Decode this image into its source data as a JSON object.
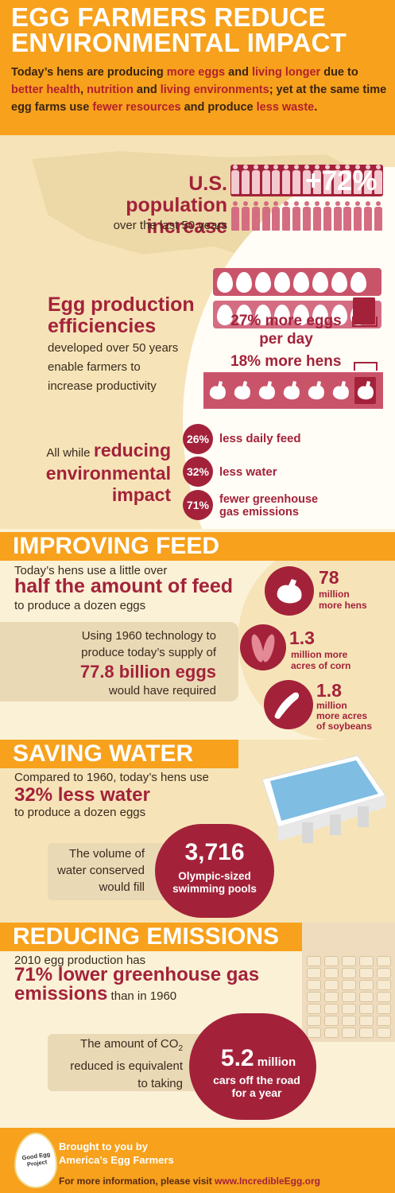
{
  "header": {
    "title": "EGG FARMERS REDUCE ENVIRONMENTAL IMPACT",
    "intro": [
      {
        "t": "Today’s hens are producing ",
        "hl": false
      },
      {
        "t": "more eggs",
        "hl": true
      },
      {
        "t": " and ",
        "hl": false
      },
      {
        "t": "living longer",
        "hl": true
      },
      {
        "t": " due to ",
        "hl": false
      },
      {
        "t": "better health",
        "hl": true
      },
      {
        "t": ", ",
        "hl": false
      },
      {
        "t": "nutrition",
        "hl": true
      },
      {
        "t": " and ",
        "hl": false
      },
      {
        "t": "living environments",
        "hl": true
      },
      {
        "t": "; yet at the same time egg farms use ",
        "hl": false
      },
      {
        "t": "fewer resources",
        "hl": true
      },
      {
        "t": " and produce ",
        "hl": false
      },
      {
        "t": "less waste",
        "hl": true
      },
      {
        "t": ".",
        "hl": false
      }
    ]
  },
  "population": {
    "heading_1": "U.S. population",
    "heading_2": "increase",
    "sub": "over the last 50 years",
    "value": "+72%"
  },
  "production": {
    "heading_1": "Egg production",
    "heading_2": "efficiencies",
    "body_1": "developed over 50 years",
    "body_2": "enable farmers to",
    "body_3": "increase productivity",
    "eggs_label_1": "27% more eggs",
    "eggs_label_2": "per day",
    "hens_label": "18% more hens"
  },
  "reducing": {
    "prefix": "All while",
    "heading_1": "reducing",
    "heading_2": "environmental",
    "heading_3": "impact",
    "items": [
      {
        "pct": "26%",
        "label": "less daily feed"
      },
      {
        "pct": "32%",
        "label": "less water"
      },
      {
        "pct": "71%",
        "label_1": "fewer greenhouse",
        "label_2": "gas emissions"
      }
    ]
  },
  "feed": {
    "band": "IMPROVING FEED",
    "line1": "Today’s hens use a little over",
    "big": "half the amount of feed",
    "line2": "to produce a dozen eggs",
    "box_1": "Using 1960 technology to",
    "box_2": "produce today’s supply of",
    "box_big": "77.8 billion eggs",
    "box_3": "would have required",
    "stats": [
      {
        "icon": "hen-icon",
        "num": "78",
        "l1": "million",
        "l2": "more hens"
      },
      {
        "icon": "corn-icon",
        "num": "1.3",
        "l1": "million more",
        "l2": "acres of corn"
      },
      {
        "icon": "soybean-icon",
        "num": "1.8",
        "l1": "million",
        "l2": "more acres",
        "l3": "of soybeans"
      }
    ]
  },
  "water": {
    "band": "SAVING WATER",
    "line1": "Compared to 1960, today’s hens use",
    "big": "32% less water",
    "line2": "to produce a dozen eggs",
    "box_1": "The volume of",
    "box_2": "water conserved",
    "box_3": "would fill",
    "circle_num": "3,716",
    "circle_l1": "Olympic-sized",
    "circle_l2": "swimming pools"
  },
  "emissions": {
    "band": "REDUCING EMISSIONS",
    "line1": "2010 egg production has",
    "big_1": "71% lower greenhouse gas",
    "big_2": "emissions",
    "after": " than in 1960",
    "box_1": "The amount of CO",
    "box_sub": "2",
    "box_2": "reduced is equivalent",
    "box_3": "to taking",
    "circle_num": "5.2",
    "circle_unit": " million",
    "circle_l1": "cars off the road",
    "circle_l2": "for a year"
  },
  "footer": {
    "logo_1": "Good Egg",
    "logo_2": "Project",
    "brought_1": "Brought to you by",
    "brought_2": "America’s Egg Farmers",
    "info": "For more information, please visit ",
    "url": "www.IncredibleEgg.org"
  },
  "colors": {
    "orange": "#f7a11c",
    "maroon": "#a3223a",
    "pink": "#c9546a",
    "cream": "#fbf1d6"
  }
}
